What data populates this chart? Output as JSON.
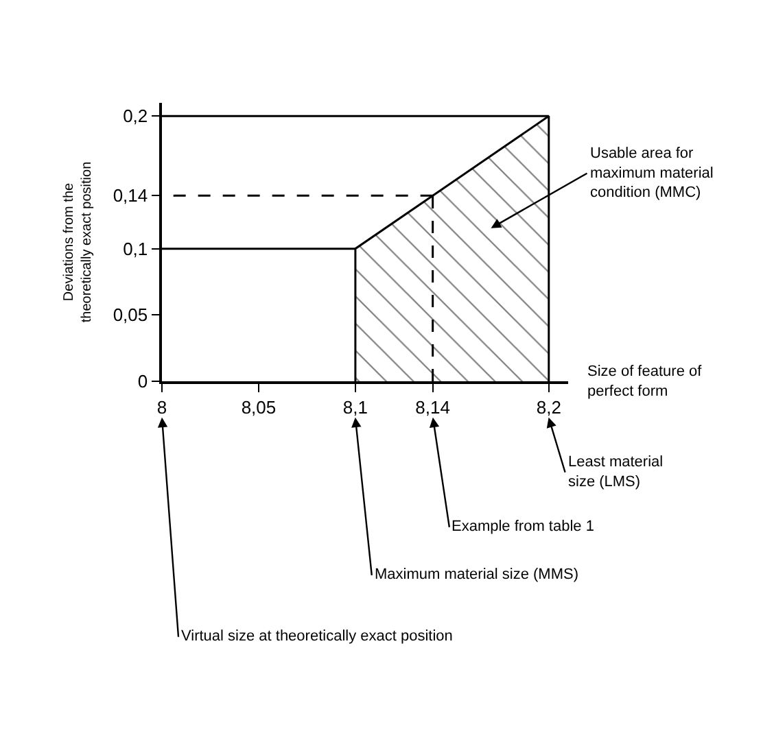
{
  "chart_data": {
    "type": "area",
    "xlabel": "Size of feature of perfect form",
    "ylabel": "Deviations from the theoretically exact position",
    "series": [
      {
        "x": [
          8.1,
          8.1,
          8.2,
          8.2
        ],
        "values": [
          0,
          0.1,
          0.2,
          0
        ],
        "color": "#000000",
        "line_style": "solid"
      },
      {
        "type": "line",
        "x": [
          8,
          8.1
        ],
        "values": [
          0.1,
          0.1
        ],
        "color": "#000000",
        "line_style": "solid"
      },
      {
        "type": "line",
        "x": [
          8,
          8.2
        ],
        "values": [
          0.2,
          0.2
        ],
        "color": "#000000",
        "line_style": "solid"
      },
      {
        "type": "line",
        "x": [
          8.14,
          8
        ],
        "values": [
          0.14,
          0.14
        ],
        "color": "#000000",
        "line_style": "dashed"
      },
      {
        "type": "line",
        "x": [
          8.14,
          8.14
        ],
        "values": [
          0,
          0.14
        ],
        "color": "#000000",
        "line_style": "dashed"
      }
    ],
    "xlim": [
      8,
      8.21
    ],
    "ylim": [
      0,
      0.21
    ],
    "xticks": [
      8,
      {
        "value": 8.05,
        "label": "8,05"
      },
      {
        "value": 8.1,
        "label": "8,1"
      },
      {
        "value": 8.14,
        "label": "8,14"
      },
      {
        "value": 8.2,
        "label": "8,2"
      }
    ],
    "yticks": [
      0,
      {
        "value": 0.05,
        "label": "0,05"
      },
      {
        "value": 0.1,
        "label": "0,1"
      },
      {
        "value": 0.14,
        "label": "0,14"
      },
      {
        "value": 0.2,
        "label": "0,2"
      }
    ],
    "annotations": [
      "Usable area for maximum material condition (MMC)",
      "Least material size (LMS)",
      "Example from table 1",
      "Maximum material size (MMS)",
      "Virtual size at theoretically exact position"
    ],
    "marker": "none"
  }
}
